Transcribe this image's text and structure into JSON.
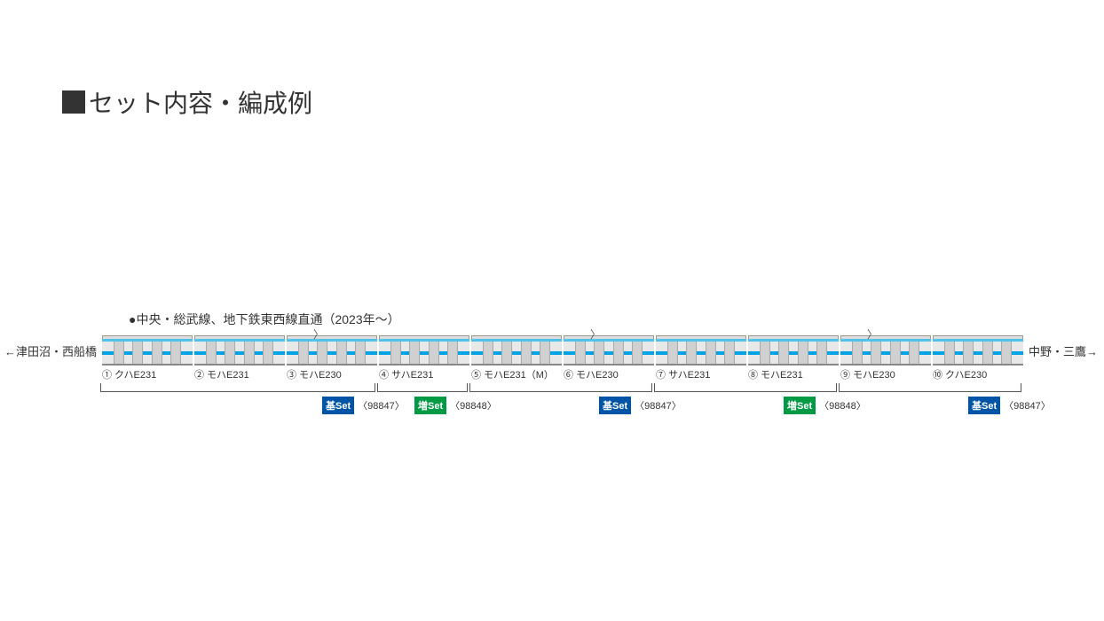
{
  "heading": "セット内容・編成例",
  "line_label": "●中央・総武線、地下鉄東西線直通（2023年～）",
  "dest_left": "←津田沼・西船橋",
  "dest_right": "中野・三鷹→",
  "colors": {
    "stripe_light": "#4fc3e8",
    "stripe_dark": "#00a4e4",
    "body": "#e8e8e8",
    "roof": "#dddddd",
    "basic_badge": "#0054a6",
    "addon_badge": "#009944"
  },
  "cars": [
    {
      "num": "①",
      "type": "クハE231",
      "panto": false
    },
    {
      "num": "②",
      "type": "モハE231",
      "panto": false
    },
    {
      "num": "③",
      "type": "モハE230",
      "panto": true
    },
    {
      "num": "④",
      "type": "サハE231",
      "panto": false
    },
    {
      "num": "⑤",
      "type": "モハE231（M）",
      "panto": false
    },
    {
      "num": "⑥",
      "type": "モハE230",
      "panto": true
    },
    {
      "num": "⑦",
      "type": "サハE231",
      "panto": false
    },
    {
      "num": "⑧",
      "type": "モハE231",
      "panto": false
    },
    {
      "num": "⑨",
      "type": "モハE230",
      "panto": true
    },
    {
      "num": "⑩",
      "type": "クハE230",
      "panto": false
    }
  ],
  "groups": [
    {
      "start": 0,
      "end": 2,
      "badge_type": "basic",
      "badge_label": "基Set",
      "code": "〈98847〉"
    },
    {
      "start": 3,
      "end": 3,
      "badge_type": "addon",
      "badge_label": "増Set",
      "code": "〈98848〉"
    },
    {
      "start": 4,
      "end": 5,
      "badge_type": "basic",
      "badge_label": "基Set",
      "code": "〈98847〉"
    },
    {
      "start": 6,
      "end": 7,
      "badge_type": "addon",
      "badge_label": "増Set",
      "code": "〈98848〉"
    },
    {
      "start": 8,
      "end": 9,
      "badge_type": "basic",
      "badge_label": "基Set",
      "code": "〈98847〉"
    }
  ]
}
